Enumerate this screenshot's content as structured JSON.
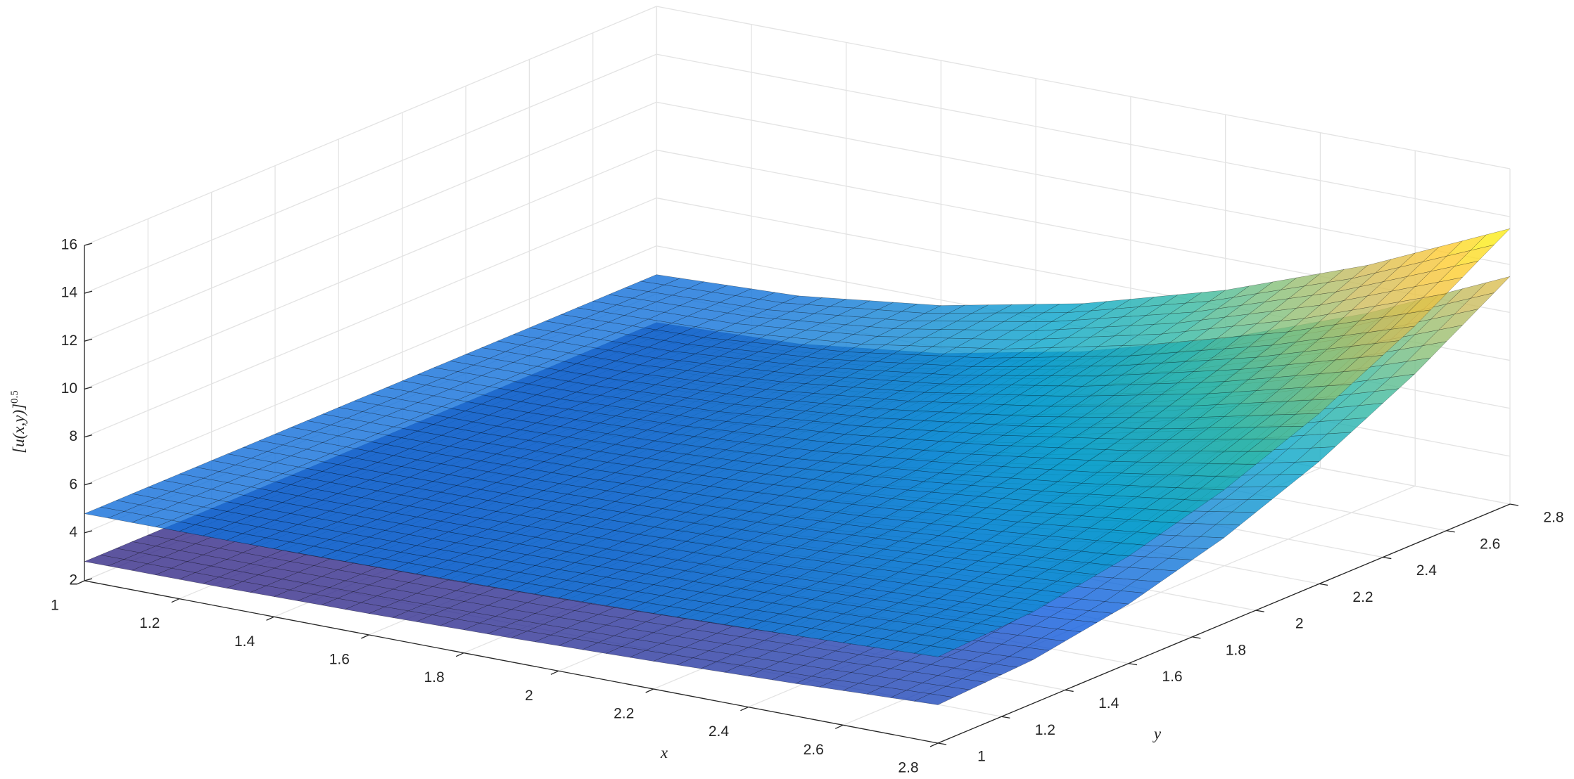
{
  "chart_data": {
    "type": "surface",
    "xlabel": "x",
    "ylabel": "y",
    "zlabel": {
      "text": "[u(x,y)]",
      "exponent": "0.5"
    },
    "x": [
      1,
      1.3,
      1.6,
      1.9,
      2.2,
      2.5,
      2.8
    ],
    "y": [
      1,
      1.3,
      1.6,
      1.9,
      2.2,
      2.5,
      2.8
    ],
    "series": [
      {
        "values": [
          [
            2.8,
            2.8,
            2.8,
            2.8,
            2.8,
            2.8,
            2.8
          ],
          [
            2.82,
            2.83,
            2.85,
            2.88,
            2.92,
            2.97,
            3.04
          ],
          [
            2.89,
            2.91,
            2.99,
            3.11,
            3.28,
            3.5,
            3.77
          ],
          [
            3,
            3.05,
            3.22,
            3.49,
            3.88,
            4.37,
            4.98
          ],
          [
            3.16,
            3.25,
            3.55,
            4.03,
            4.72,
            5.59,
            6.67
          ],
          [
            3.36,
            3.51,
            3.97,
            4.73,
            5.79,
            7.17,
            8.84
          ],
          [
            3.6,
            3.82,
            4.48,
            5.58,
            7.11,
            9.09,
            11.5
          ]
        ]
      },
      {
        "values": [
          [
            4.8,
            4.8,
            4.8,
            4.8,
            4.8,
            4.8,
            4.8
          ],
          [
            4.82,
            4.83,
            4.85,
            4.88,
            4.92,
            4.97,
            5.04
          ],
          [
            4.89,
            4.91,
            4.99,
            5.11,
            5.28,
            5.5,
            5.77
          ],
          [
            5,
            5.05,
            5.22,
            5.49,
            5.88,
            6.37,
            6.98
          ],
          [
            5.16,
            5.25,
            5.55,
            6.03,
            6.72,
            7.59,
            8.67
          ],
          [
            5.36,
            5.51,
            5.97,
            6.73,
            7.79,
            9.17,
            10.84
          ],
          [
            5.6,
            5.82,
            6.48,
            7.58,
            9.11,
            11.09,
            13.5
          ]
        ]
      }
    ],
    "xlim": [
      1,
      2.8
    ],
    "ylim": [
      1,
      2.8
    ],
    "zlim": [
      2,
      16
    ],
    "xticks": [
      1,
      1.2,
      1.4,
      1.6,
      1.8,
      2,
      2.2,
      2.4,
      2.6,
      2.8
    ],
    "yticks": [
      1,
      1.2,
      1.4,
      1.6,
      1.8,
      2,
      2.2,
      2.4,
      2.6,
      2.8
    ],
    "zticks": [
      2,
      4,
      6,
      8,
      10,
      12,
      14,
      16
    ],
    "grid": true,
    "colormap": "parula",
    "face_alpha": 0.8,
    "edge_color": "#000000"
  }
}
